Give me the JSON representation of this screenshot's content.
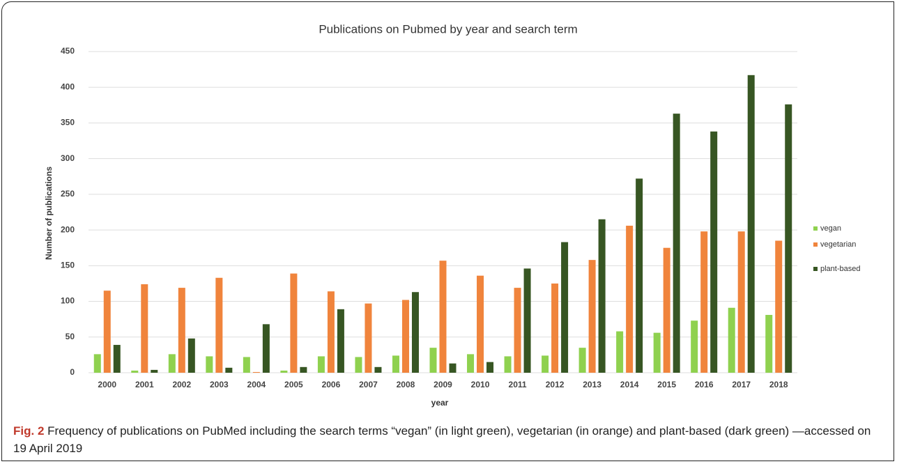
{
  "chart_data": {
    "type": "bar",
    "title": "Publications on Pubmed by year and search term",
    "x_label": "year",
    "y_label": "Number of publications",
    "categories": [
      "2000",
      "2001",
      "2002",
      "2003",
      "2004",
      "2005",
      "2006",
      "2007",
      "2008",
      "2009",
      "2010",
      "2011",
      "2012",
      "2013",
      "2014",
      "2015",
      "2016",
      "2017",
      "2018"
    ],
    "series": [
      {
        "name": "vegan",
        "color": "#8fd14f",
        "values": [
          26,
          3,
          26,
          23,
          22,
          3,
          23,
          22,
          24,
          35,
          26,
          23,
          24,
          35,
          58,
          56,
          73,
          91,
          81
        ]
      },
      {
        "name": "vegetarian",
        "color": "#f0843c",
        "values": [
          115,
          124,
          119,
          133,
          1,
          139,
          114,
          97,
          102,
          157,
          136,
          119,
          125,
          158,
          206,
          175,
          198,
          198,
          185
        ]
      },
      {
        "name": "plant-based",
        "color": "#375623",
        "values": [
          39,
          4,
          48,
          7,
          68,
          8,
          89,
          8,
          113,
          13,
          15,
          146,
          183,
          215,
          272,
          363,
          338,
          417,
          376
        ]
      }
    ],
    "ylim": [
      0,
      450
    ],
    "yticks": [
      0,
      50,
      100,
      150,
      200,
      250,
      300,
      350,
      400,
      450
    ],
    "grid": true,
    "legend": "right"
  },
  "caption": {
    "label": "Fig. 2",
    "text": "Frequency of publications on PubMed including the search terms “vegan” (in light green), vegetarian (in orange) and plant-based (dark green) —accessed on 19 April 2019"
  }
}
